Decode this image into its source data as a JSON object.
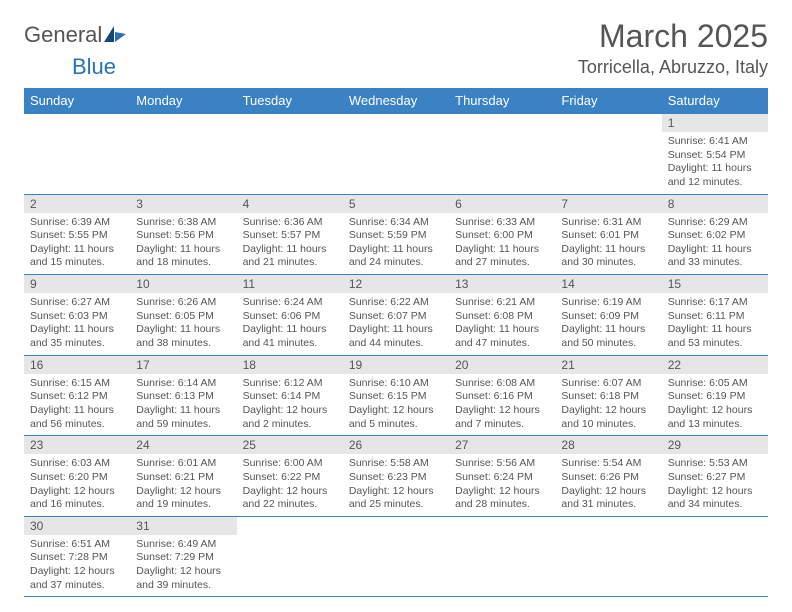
{
  "logo": {
    "word1": "General",
    "word2": "Blue"
  },
  "title": "March 2025",
  "location": "Torricella, Abruzzo, Italy",
  "columns": [
    "Sunday",
    "Monday",
    "Tuesday",
    "Wednesday",
    "Thursday",
    "Friday",
    "Saturday"
  ],
  "colors": {
    "header_bg": "#3b82c4",
    "header_fg": "#ffffff",
    "border": "#3b82c4",
    "daynum_bg": "#e6e6e6",
    "text": "#555555",
    "logo_blue": "#2a71b8"
  },
  "weeks": [
    [
      null,
      null,
      null,
      null,
      null,
      null,
      {
        "n": "1",
        "sunrise": "Sunrise: 6:41 AM",
        "sunset": "Sunset: 5:54 PM",
        "day1": "Daylight: 11 hours",
        "day2": "and 12 minutes."
      }
    ],
    [
      {
        "n": "2",
        "sunrise": "Sunrise: 6:39 AM",
        "sunset": "Sunset: 5:55 PM",
        "day1": "Daylight: 11 hours",
        "day2": "and 15 minutes."
      },
      {
        "n": "3",
        "sunrise": "Sunrise: 6:38 AM",
        "sunset": "Sunset: 5:56 PM",
        "day1": "Daylight: 11 hours",
        "day2": "and 18 minutes."
      },
      {
        "n": "4",
        "sunrise": "Sunrise: 6:36 AM",
        "sunset": "Sunset: 5:57 PM",
        "day1": "Daylight: 11 hours",
        "day2": "and 21 minutes."
      },
      {
        "n": "5",
        "sunrise": "Sunrise: 6:34 AM",
        "sunset": "Sunset: 5:59 PM",
        "day1": "Daylight: 11 hours",
        "day2": "and 24 minutes."
      },
      {
        "n": "6",
        "sunrise": "Sunrise: 6:33 AM",
        "sunset": "Sunset: 6:00 PM",
        "day1": "Daylight: 11 hours",
        "day2": "and 27 minutes."
      },
      {
        "n": "7",
        "sunrise": "Sunrise: 6:31 AM",
        "sunset": "Sunset: 6:01 PM",
        "day1": "Daylight: 11 hours",
        "day2": "and 30 minutes."
      },
      {
        "n": "8",
        "sunrise": "Sunrise: 6:29 AM",
        "sunset": "Sunset: 6:02 PM",
        "day1": "Daylight: 11 hours",
        "day2": "and 33 minutes."
      }
    ],
    [
      {
        "n": "9",
        "sunrise": "Sunrise: 6:27 AM",
        "sunset": "Sunset: 6:03 PM",
        "day1": "Daylight: 11 hours",
        "day2": "and 35 minutes."
      },
      {
        "n": "10",
        "sunrise": "Sunrise: 6:26 AM",
        "sunset": "Sunset: 6:05 PM",
        "day1": "Daylight: 11 hours",
        "day2": "and 38 minutes."
      },
      {
        "n": "11",
        "sunrise": "Sunrise: 6:24 AM",
        "sunset": "Sunset: 6:06 PM",
        "day1": "Daylight: 11 hours",
        "day2": "and 41 minutes."
      },
      {
        "n": "12",
        "sunrise": "Sunrise: 6:22 AM",
        "sunset": "Sunset: 6:07 PM",
        "day1": "Daylight: 11 hours",
        "day2": "and 44 minutes."
      },
      {
        "n": "13",
        "sunrise": "Sunrise: 6:21 AM",
        "sunset": "Sunset: 6:08 PM",
        "day1": "Daylight: 11 hours",
        "day2": "and 47 minutes."
      },
      {
        "n": "14",
        "sunrise": "Sunrise: 6:19 AM",
        "sunset": "Sunset: 6:09 PM",
        "day1": "Daylight: 11 hours",
        "day2": "and 50 minutes."
      },
      {
        "n": "15",
        "sunrise": "Sunrise: 6:17 AM",
        "sunset": "Sunset: 6:11 PM",
        "day1": "Daylight: 11 hours",
        "day2": "and 53 minutes."
      }
    ],
    [
      {
        "n": "16",
        "sunrise": "Sunrise: 6:15 AM",
        "sunset": "Sunset: 6:12 PM",
        "day1": "Daylight: 11 hours",
        "day2": "and 56 minutes."
      },
      {
        "n": "17",
        "sunrise": "Sunrise: 6:14 AM",
        "sunset": "Sunset: 6:13 PM",
        "day1": "Daylight: 11 hours",
        "day2": "and 59 minutes."
      },
      {
        "n": "18",
        "sunrise": "Sunrise: 6:12 AM",
        "sunset": "Sunset: 6:14 PM",
        "day1": "Daylight: 12 hours",
        "day2": "and 2 minutes."
      },
      {
        "n": "19",
        "sunrise": "Sunrise: 6:10 AM",
        "sunset": "Sunset: 6:15 PM",
        "day1": "Daylight: 12 hours",
        "day2": "and 5 minutes."
      },
      {
        "n": "20",
        "sunrise": "Sunrise: 6:08 AM",
        "sunset": "Sunset: 6:16 PM",
        "day1": "Daylight: 12 hours",
        "day2": "and 7 minutes."
      },
      {
        "n": "21",
        "sunrise": "Sunrise: 6:07 AM",
        "sunset": "Sunset: 6:18 PM",
        "day1": "Daylight: 12 hours",
        "day2": "and 10 minutes."
      },
      {
        "n": "22",
        "sunrise": "Sunrise: 6:05 AM",
        "sunset": "Sunset: 6:19 PM",
        "day1": "Daylight: 12 hours",
        "day2": "and 13 minutes."
      }
    ],
    [
      {
        "n": "23",
        "sunrise": "Sunrise: 6:03 AM",
        "sunset": "Sunset: 6:20 PM",
        "day1": "Daylight: 12 hours",
        "day2": "and 16 minutes."
      },
      {
        "n": "24",
        "sunrise": "Sunrise: 6:01 AM",
        "sunset": "Sunset: 6:21 PM",
        "day1": "Daylight: 12 hours",
        "day2": "and 19 minutes."
      },
      {
        "n": "25",
        "sunrise": "Sunrise: 6:00 AM",
        "sunset": "Sunset: 6:22 PM",
        "day1": "Daylight: 12 hours",
        "day2": "and 22 minutes."
      },
      {
        "n": "26",
        "sunrise": "Sunrise: 5:58 AM",
        "sunset": "Sunset: 6:23 PM",
        "day1": "Daylight: 12 hours",
        "day2": "and 25 minutes."
      },
      {
        "n": "27",
        "sunrise": "Sunrise: 5:56 AM",
        "sunset": "Sunset: 6:24 PM",
        "day1": "Daylight: 12 hours",
        "day2": "and 28 minutes."
      },
      {
        "n": "28",
        "sunrise": "Sunrise: 5:54 AM",
        "sunset": "Sunset: 6:26 PM",
        "day1": "Daylight: 12 hours",
        "day2": "and 31 minutes."
      },
      {
        "n": "29",
        "sunrise": "Sunrise: 5:53 AM",
        "sunset": "Sunset: 6:27 PM",
        "day1": "Daylight: 12 hours",
        "day2": "and 34 minutes."
      }
    ],
    [
      {
        "n": "30",
        "sunrise": "Sunrise: 6:51 AM",
        "sunset": "Sunset: 7:28 PM",
        "day1": "Daylight: 12 hours",
        "day2": "and 37 minutes."
      },
      {
        "n": "31",
        "sunrise": "Sunrise: 6:49 AM",
        "sunset": "Sunset: 7:29 PM",
        "day1": "Daylight: 12 hours",
        "day2": "and 39 minutes."
      },
      null,
      null,
      null,
      null,
      null
    ]
  ]
}
